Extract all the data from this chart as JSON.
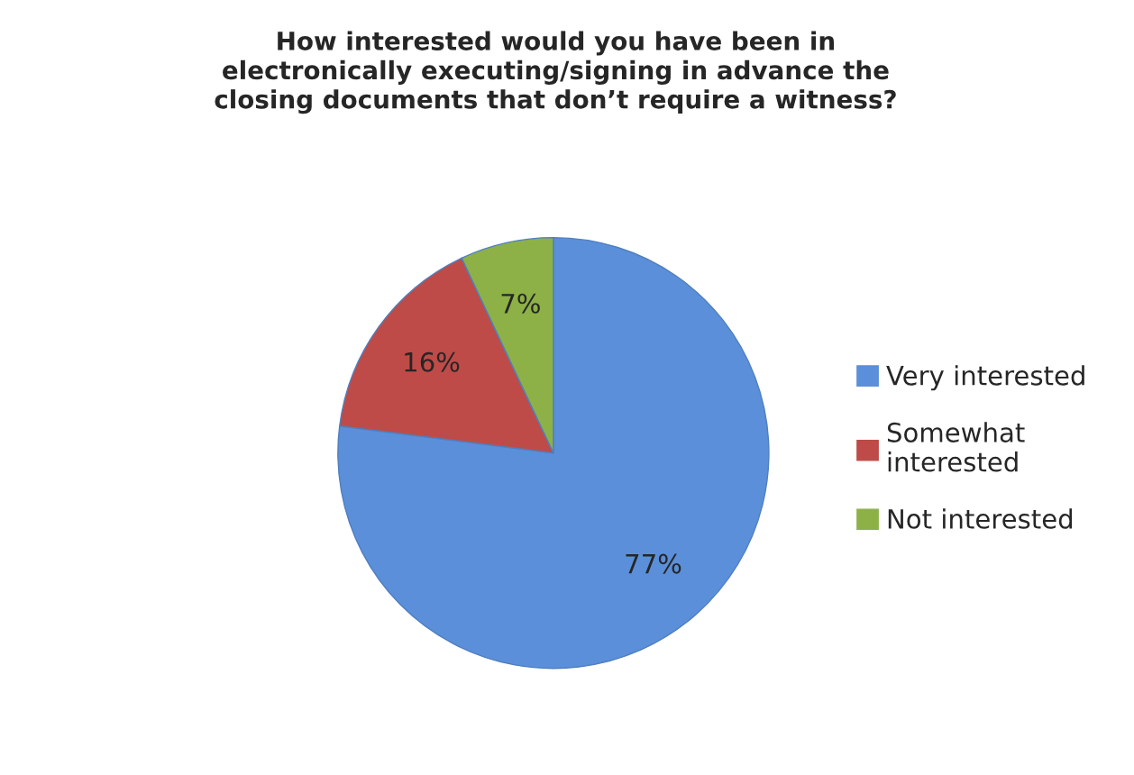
{
  "chart_data": {
    "type": "pie",
    "title": "How interested would you have been in\nelectronically executing/signing in advance the\nclosing documents that don’t require a witness?",
    "categories": [
      "Very interested",
      "Somewhat\ninterested",
      "Not interested"
    ],
    "values": [
      77,
      16,
      7
    ],
    "colors": [
      "#5b8fd9",
      "#be4b48",
      "#8db146"
    ],
    "value_labels": [
      "77%",
      "16%",
      "7%"
    ],
    "legend": "right"
  }
}
